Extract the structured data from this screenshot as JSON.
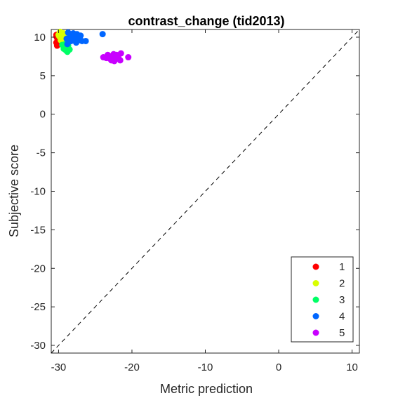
{
  "chart_data": {
    "type": "scatter",
    "title": "contrast_change (tid2013)",
    "xlabel": "Metric prediction",
    "ylabel": "Subjective score",
    "xlim": [
      -31,
      11
    ],
    "ylim": [
      -31,
      11
    ],
    "xticks": [
      -30,
      -20,
      -10,
      0,
      10
    ],
    "yticks": [
      10,
      5,
      0,
      -5,
      -10,
      -15,
      -20,
      -25,
      -30
    ],
    "grid": false,
    "reference_line": "identity, dashed",
    "legend_position": "bottom-right",
    "series": [
      {
        "name": "1",
        "color": "#ff0000",
        "points": [
          [
            -30.3,
            10.3
          ],
          [
            -30.2,
            9.9
          ],
          [
            -30.1,
            9.6
          ],
          [
            -30.3,
            9.3
          ],
          [
            -30.1,
            9.1
          ],
          [
            -30.2,
            8.9
          ],
          [
            -30.0,
            9.4
          ],
          [
            -30.3,
            10.1
          ],
          [
            -30.1,
            10.0
          ],
          [
            -30.2,
            9.0
          ]
        ]
      },
      {
        "name": "2",
        "color": "#d9ff00",
        "points": [
          [
            -29.8,
            10.6
          ],
          [
            -29.5,
            10.4
          ],
          [
            -29.2,
            10.2
          ],
          [
            -29.9,
            10.1
          ],
          [
            -29.6,
            9.9
          ],
          [
            -29.3,
            10.5
          ],
          [
            -29.0,
            10.0
          ],
          [
            -29.7,
            9.6
          ],
          [
            -29.4,
            9.7
          ],
          [
            -30.0,
            10.3
          ],
          [
            -29.1,
            9.8
          ],
          [
            -29.8,
            10.7
          ]
        ]
      },
      {
        "name": "3",
        "color": "#00ff66",
        "points": [
          [
            -29.5,
            9.0
          ],
          [
            -29.2,
            8.7
          ],
          [
            -29.0,
            8.3
          ],
          [
            -28.8,
            8.1
          ],
          [
            -29.3,
            8.5
          ],
          [
            -28.5,
            8.4
          ],
          [
            -28.7,
            8.9
          ],
          [
            -29.1,
            9.1
          ],
          [
            -28.9,
            8.6
          ]
        ]
      },
      {
        "name": "4",
        "color": "#0066ff",
        "points": [
          [
            -28.7,
            10.6
          ],
          [
            -28.2,
            10.3
          ],
          [
            -27.8,
            10.1
          ],
          [
            -27.5,
            10.4
          ],
          [
            -27.2,
            10.0
          ],
          [
            -28.5,
            9.9
          ],
          [
            -27.9,
            9.7
          ],
          [
            -27.3,
            9.6
          ],
          [
            -26.8,
            9.5
          ],
          [
            -26.3,
            9.5
          ],
          [
            -28.9,
            9.8
          ],
          [
            -27.0,
            10.2
          ],
          [
            -28.0,
            10.5
          ],
          [
            -24.0,
            10.4
          ],
          [
            -27.6,
            9.3
          ],
          [
            -28.3,
            9.5
          ],
          [
            -28.8,
            9.1
          ]
        ]
      },
      {
        "name": "5",
        "color": "#c800ff",
        "points": [
          [
            -23.9,
            7.4
          ],
          [
            -23.3,
            7.7
          ],
          [
            -22.9,
            7.5
          ],
          [
            -22.5,
            7.8
          ],
          [
            -22.2,
            7.3
          ],
          [
            -22.8,
            7.0
          ],
          [
            -22.4,
            6.9
          ],
          [
            -21.9,
            7.6
          ],
          [
            -21.5,
            7.9
          ],
          [
            -21.8,
            7.2
          ],
          [
            -22.6,
            7.5
          ],
          [
            -23.0,
            7.2
          ],
          [
            -21.6,
            7.0
          ],
          [
            -20.5,
            7.4
          ],
          [
            -22.1,
            7.7
          ],
          [
            -23.5,
            7.3
          ]
        ]
      }
    ]
  }
}
